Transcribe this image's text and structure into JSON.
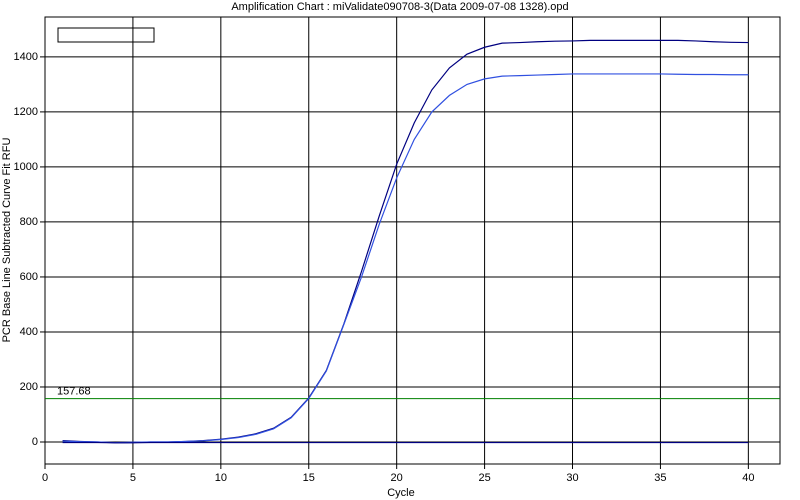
{
  "chart_data": {
    "type": "line",
    "title": "Amplification Chart : miValidate090708-3(Data 2009-07-08 1328).opd",
    "x_label": "Cycle",
    "y_label": "PCR Base Line Subtracted Curve Fit RFU",
    "x": [
      1,
      2,
      3,
      4,
      5,
      6,
      7,
      8,
      9,
      10,
      11,
      12,
      13,
      14,
      15,
      16,
      17,
      18,
      19,
      20,
      21,
      22,
      23,
      24,
      25,
      26,
      27,
      28,
      29,
      30,
      31,
      32,
      33,
      34,
      35,
      36,
      37,
      38,
      39,
      40
    ],
    "series": [
      {
        "color": "#000080",
        "values": [
          5,
          2,
          0,
          -3,
          -2,
          0,
          0,
          2,
          5,
          10,
          18,
          30,
          50,
          90,
          160,
          260,
          430,
          620,
          820,
          1010,
          1160,
          1280,
          1360,
          1410,
          1435,
          1450,
          1452,
          1455,
          1457,
          1458,
          1460,
          1460,
          1460,
          1460,
          1460,
          1460,
          1458,
          1455,
          1453,
          1452
        ]
      },
      {
        "color": "#3050e0",
        "values": [
          3,
          1,
          0,
          -2,
          -1,
          0,
          0,
          2,
          4,
          9,
          16,
          28,
          48,
          88,
          158,
          258,
          428,
          600,
          790,
          960,
          1100,
          1200,
          1260,
          1300,
          1320,
          1330,
          1332,
          1334,
          1336,
          1338,
          1338,
          1338,
          1338,
          1338,
          1338,
          1337,
          1336,
          1336,
          1335,
          1335
        ]
      },
      {
        "color": "#000080",
        "values": [
          -2,
          -2,
          -2,
          -3,
          -3,
          -2,
          -2,
          -2,
          -2,
          -2,
          -2,
          -2,
          -2,
          -2,
          -2,
          -2,
          -2,
          -2,
          -2,
          -2,
          -2,
          -2,
          -2,
          -2,
          -2,
          -2,
          -2,
          -2,
          -2,
          -2,
          -2,
          -2,
          -2,
          -2,
          -2,
          -2,
          -2,
          -2,
          -2,
          -2
        ]
      }
    ],
    "threshold": {
      "value": 157.68,
      "color": "#008000"
    },
    "xlim": [
      0,
      41.8
    ],
    "xticks": [
      0,
      5,
      10,
      15,
      20,
      25,
      30,
      35,
      40
    ],
    "ylim": [
      -80,
      1545
    ],
    "yticks": [
      0,
      200,
      400,
      600,
      800,
      1000,
      1200,
      1400
    ],
    "grid": true
  }
}
